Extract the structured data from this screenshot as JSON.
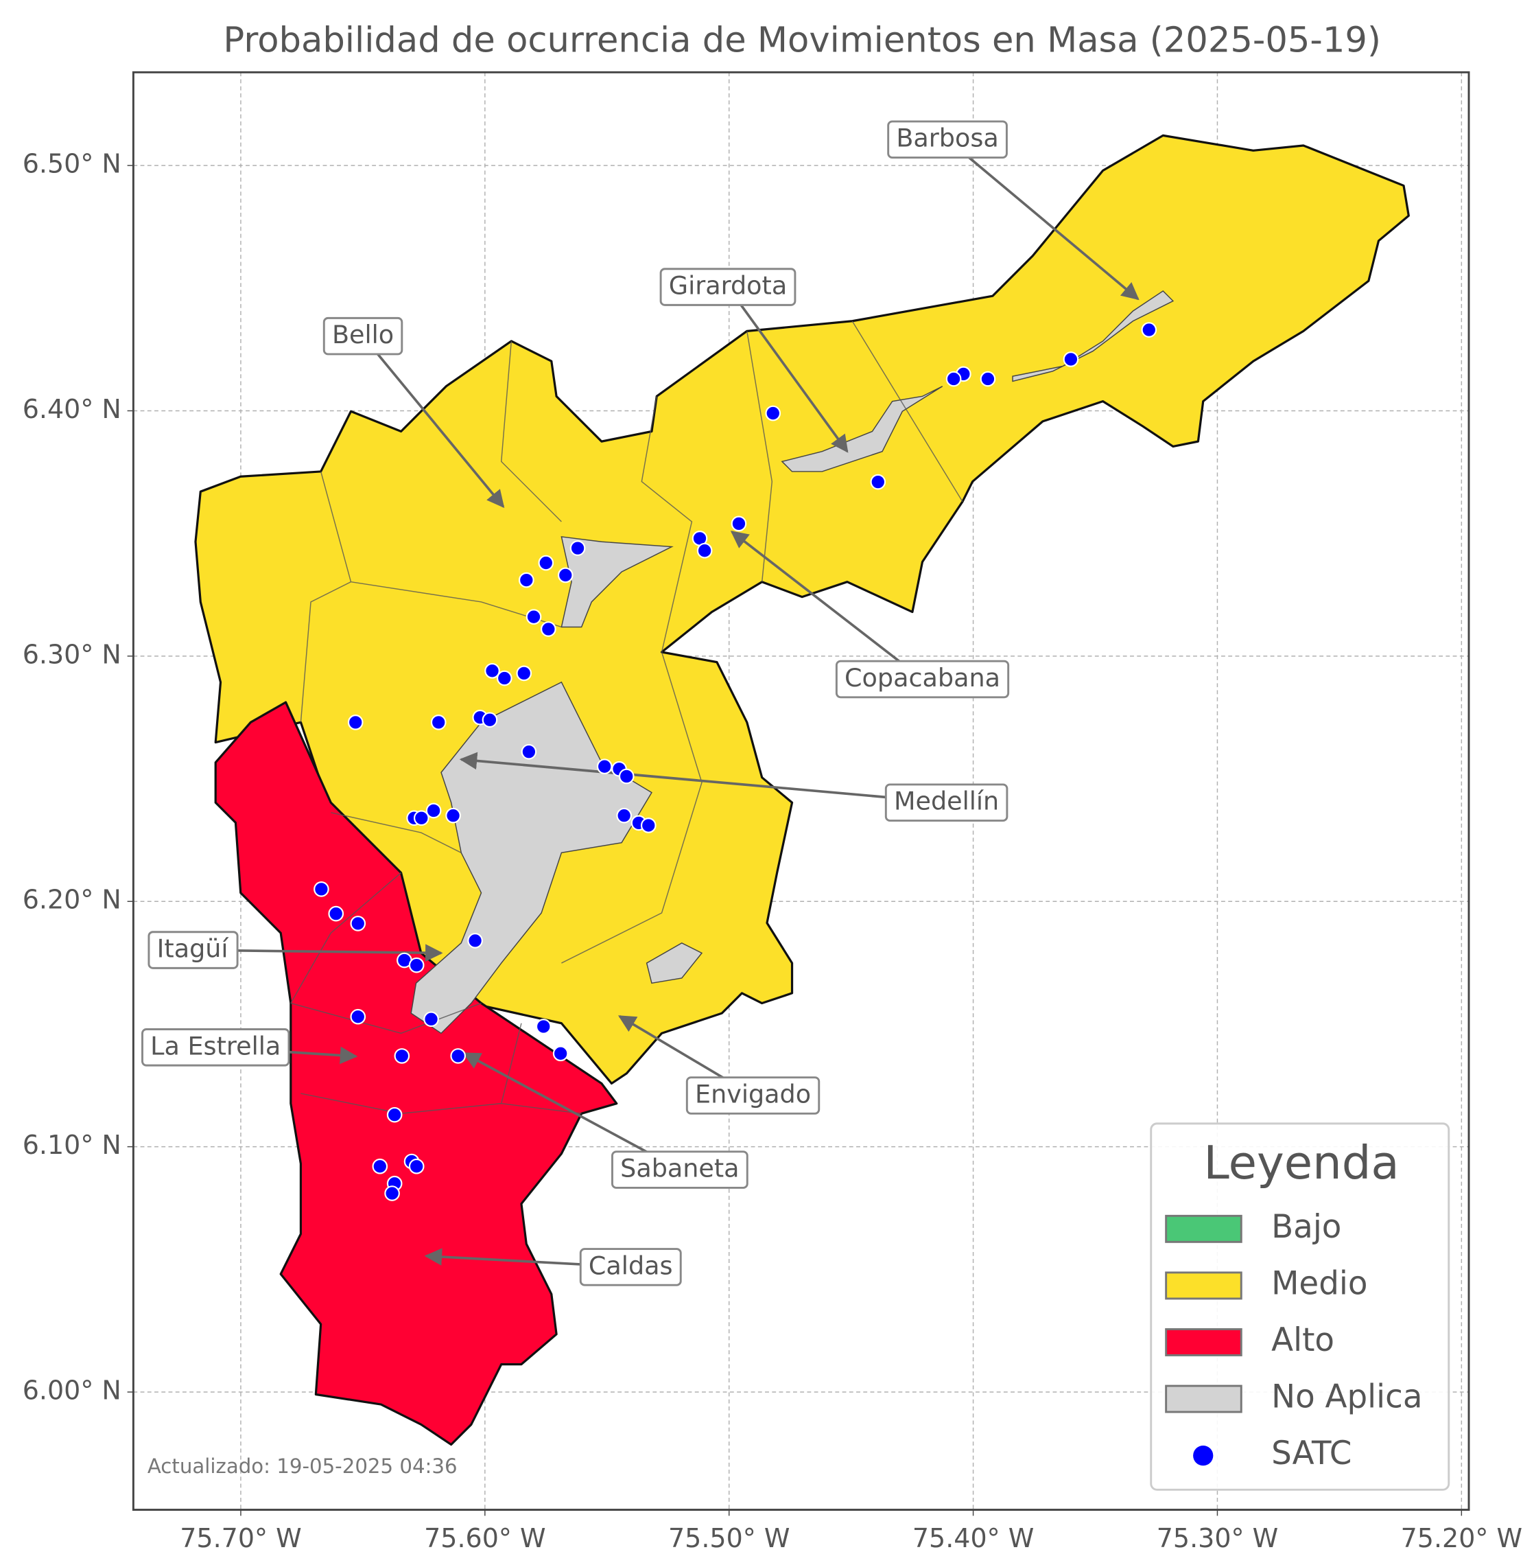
{
  "title": "Probabilidad de ocurrencia de Movimientos en Masa (2025-05-19)",
  "map": {
    "xlim": [
      -75.744,
      -75.197
    ],
    "ylim": [
      5.952,
      6.538
    ],
    "grid": true,
    "xticks": [
      {
        "value": -75.7,
        "label": "75.70° W"
      },
      {
        "value": -75.6,
        "label": "75.60° W"
      },
      {
        "value": -75.5,
        "label": "75.50° W"
      },
      {
        "value": -75.4,
        "label": "75.40° W"
      },
      {
        "value": -75.3,
        "label": "75.30° W"
      },
      {
        "value": -75.2,
        "label": "75.20° W"
      }
    ],
    "yticks": [
      {
        "value": 6.0,
        "label": "6.00° N"
      },
      {
        "value": 6.1,
        "label": "6.10° N"
      },
      {
        "value": 6.2,
        "label": "6.20° N"
      },
      {
        "value": 6.3,
        "label": "6.30° N"
      },
      {
        "value": 6.4,
        "label": "6.40° N"
      },
      {
        "value": 6.5,
        "label": "6.50° N"
      }
    ]
  },
  "satc": {
    "lon": [
      -75.328,
      -75.36,
      -75.394,
      -75.404,
      -75.408,
      -75.482,
      -75.439,
      -75.496,
      -75.512,
      -75.51,
      -75.562,
      -75.575,
      -75.567,
      -75.583,
      -75.58,
      -75.574,
      -75.597,
      -75.592,
      -75.584,
      -75.653,
      -75.619,
      -75.602,
      -75.598,
      -75.582,
      -75.551,
      -75.545,
      -75.542,
      -75.543,
      -75.537,
      -75.533,
      -75.621,
      -75.629,
      -75.626,
      -75.613,
      -75.667,
      -75.661,
      -75.652,
      -75.604,
      -75.633,
      -75.628,
      -75.652,
      -75.622,
      -75.576,
      -75.569,
      -75.634,
      -75.611,
      -75.637,
      -75.643,
      -75.63,
      -75.628,
      -75.637,
      -75.638
    ],
    "lat": [
      6.433,
      6.421,
      6.413,
      6.415,
      6.413,
      6.399,
      6.371,
      6.354,
      6.348,
      6.343,
      6.344,
      6.338,
      6.333,
      6.331,
      6.316,
      6.311,
      6.294,
      6.291,
      6.293,
      6.273,
      6.273,
      6.275,
      6.274,
      6.261,
      6.255,
      6.254,
      6.251,
      6.235,
      6.232,
      6.231,
      6.237,
      6.234,
      6.234,
      6.235,
      6.205,
      6.195,
      6.191,
      6.184,
      6.176,
      6.174,
      6.153,
      6.152,
      6.149,
      6.138,
      6.137,
      6.137,
      6.113,
      6.092,
      6.094,
      6.092,
      6.085,
      6.081
    ]
  },
  "annotations": [
    "Barbosa",
    "Girardota",
    "Bello",
    "Copacabana",
    "Medellín",
    "Itagüí",
    "La Estrella",
    "Envigado",
    "Sabaneta",
    "Caldas"
  ],
  "legend": {
    "title": "Leyenda",
    "items": [
      {
        "label": "Bajo",
        "color": "#4ac776"
      },
      {
        "label": "Medio",
        "color": "#fce029"
      },
      {
        "label": "Alto",
        "color": "#ff0033"
      },
      {
        "label": "No Aplica",
        "color": "#d3d3d3"
      },
      {
        "label": "SATC",
        "color": "#0000ff"
      }
    ]
  },
  "footer": "Actualizado: 19-05-2025 04:36"
}
